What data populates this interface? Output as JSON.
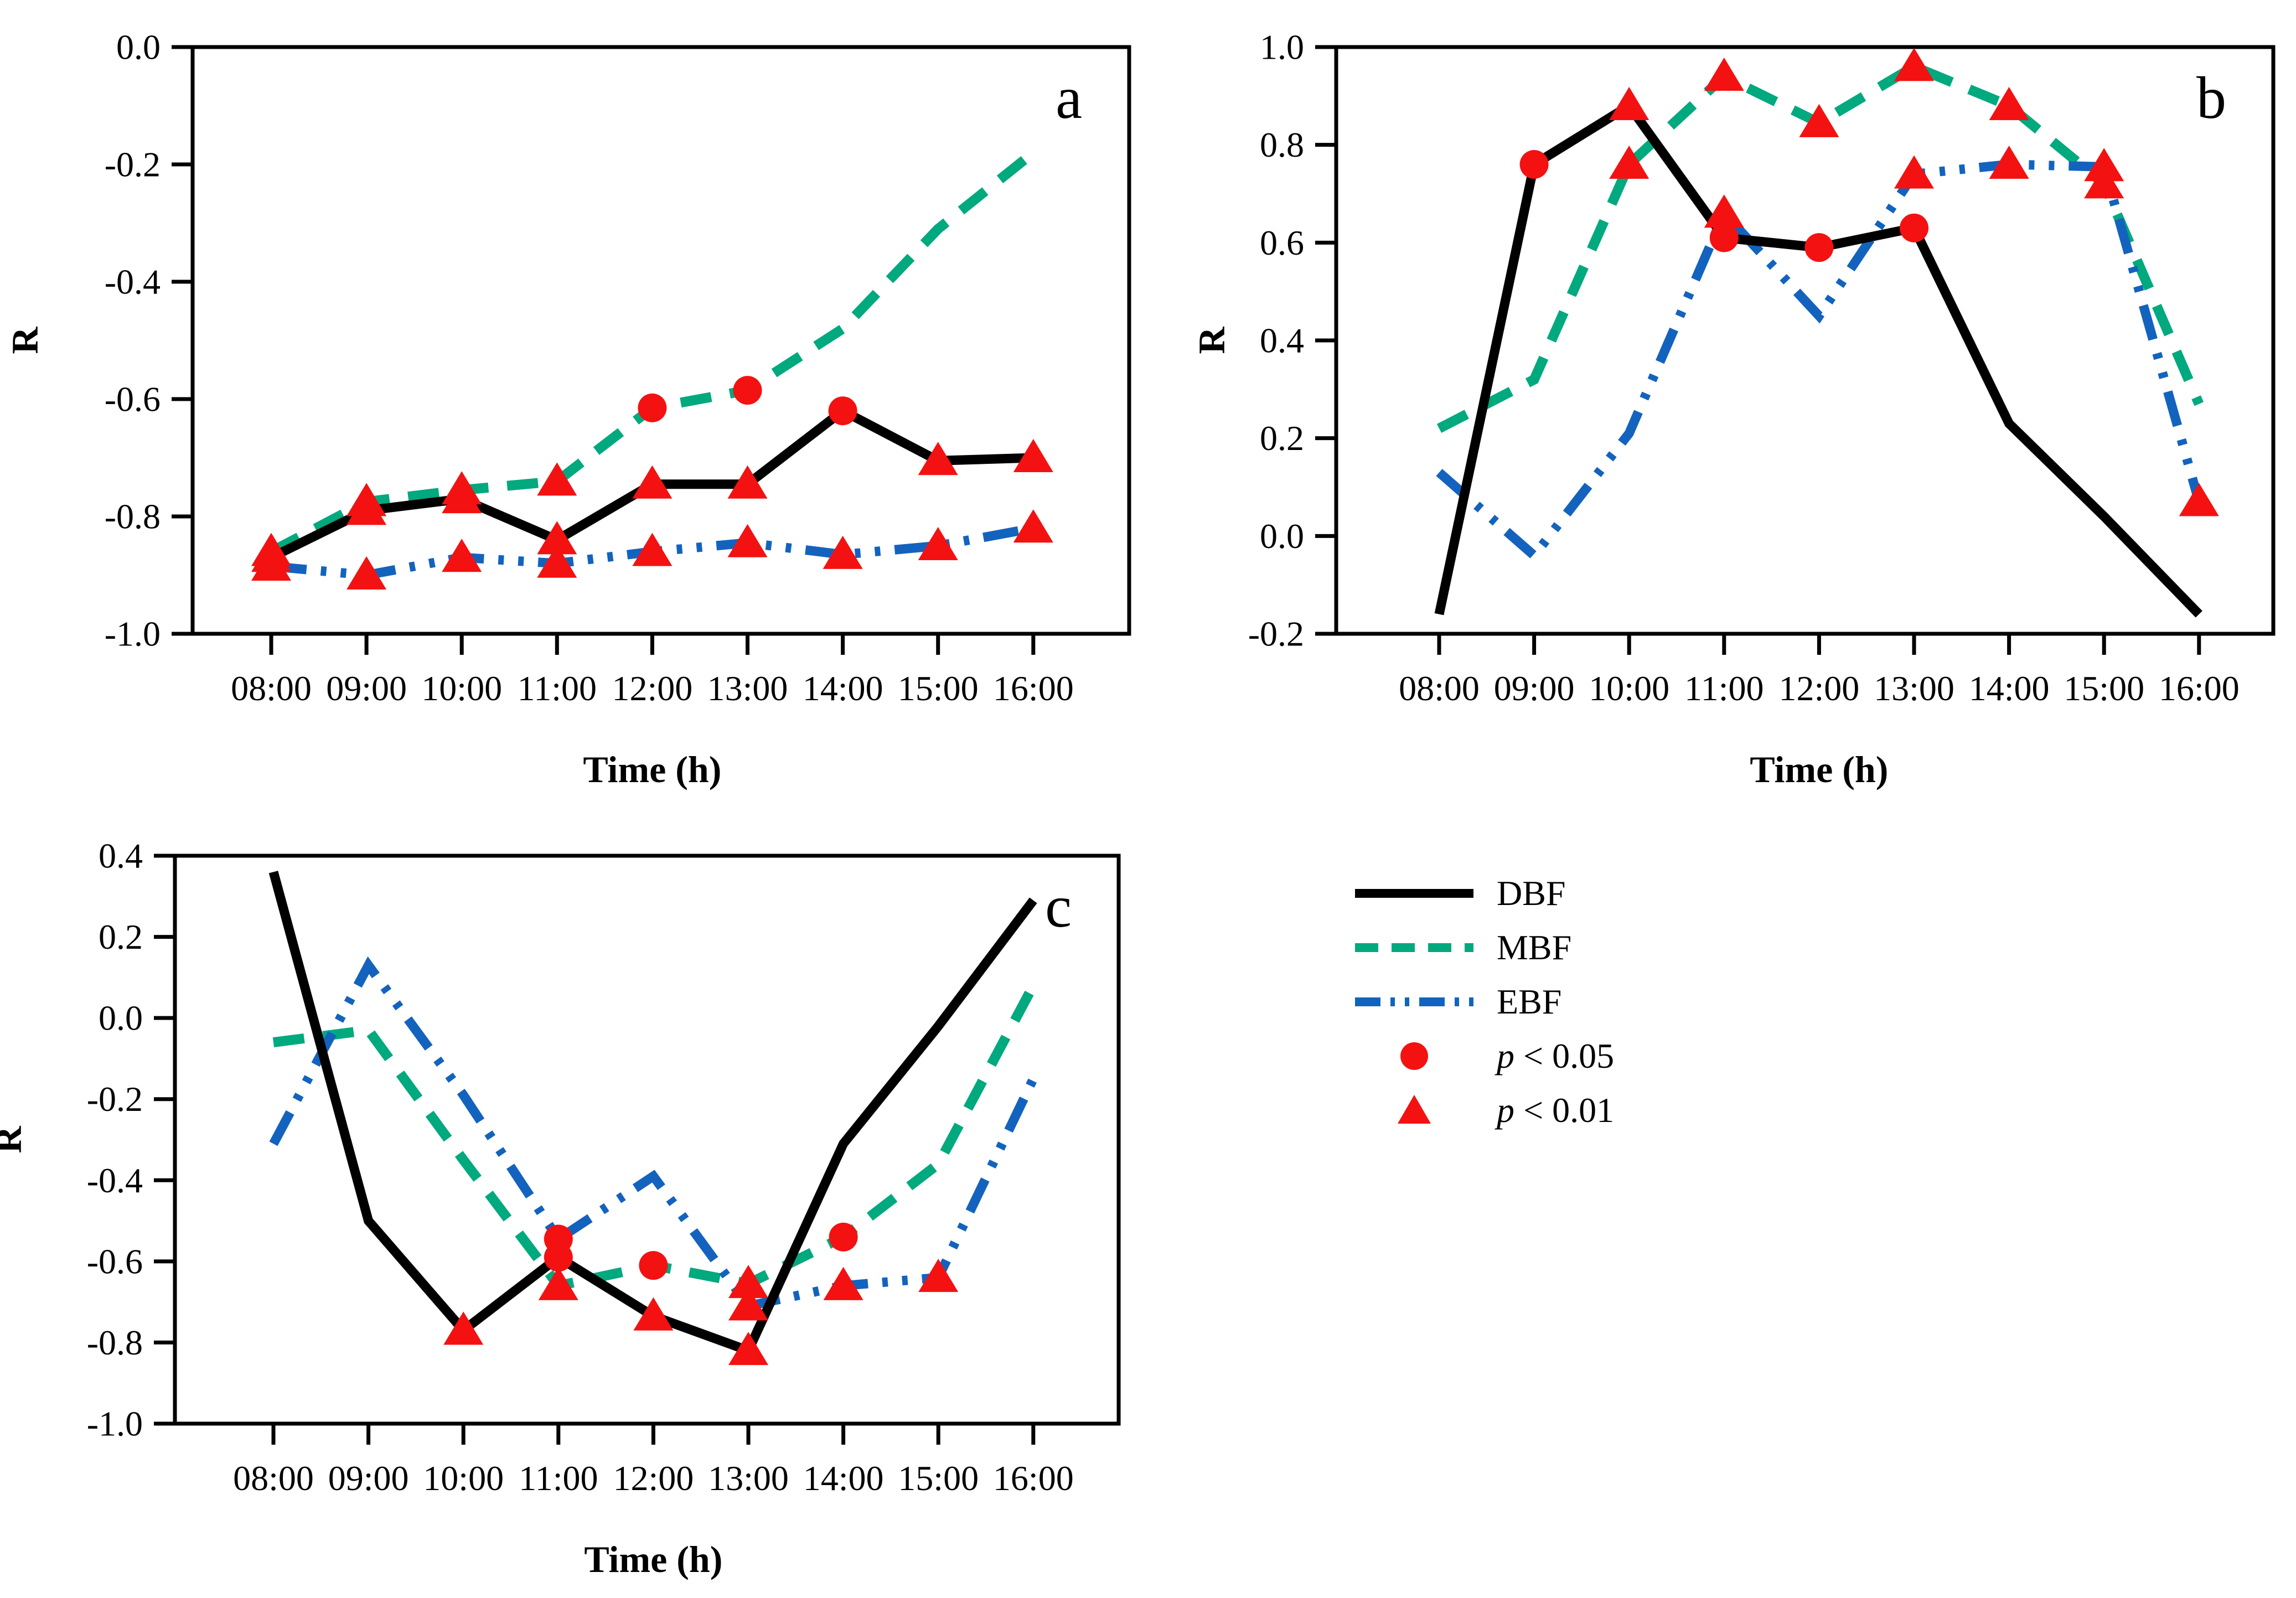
{
  "figure": {
    "background": "#ffffff",
    "x_axis_label": "Time (h)",
    "y_axis_label": "R"
  },
  "colors": {
    "dbf_line": "#000000",
    "mbf_line": "#00a97e",
    "ebf_line": "#1363be",
    "marker_red": "#f41111",
    "axis": "#000000"
  },
  "chart_data": [
    {
      "type": "line",
      "panel_label": "a",
      "xlabel": "Time (h)",
      "ylabel": "R",
      "categories": [
        "08:00",
        "09:00",
        "10:00",
        "11:00",
        "12:00",
        "13:00",
        "14:00",
        "15:00",
        "16:00"
      ],
      "ylim": [
        -1.0,
        0.0
      ],
      "yticks": [
        0.0,
        -0.2,
        -0.4,
        -0.6,
        -0.8,
        -1.0
      ],
      "ytick_labels": [
        "0.0",
        "-0.2",
        "-0.4",
        "-0.6",
        "-0.8",
        "-1.0"
      ],
      "grid": false,
      "series": [
        {
          "name": "MBF",
          "style": "dashed",
          "color": "#00a97e",
          "values": [
            -0.86,
            -0.775,
            -0.755,
            -0.74,
            -0.615,
            -0.585,
            -0.48,
            -0.31,
            -0.18
          ],
          "sig_markers": [
            "t",
            "t",
            "t",
            "t",
            "c",
            "c",
            "",
            "",
            ""
          ]
        },
        {
          "name": "EBF",
          "style": "dashdotdot",
          "color": "#1363be",
          "values": [
            -0.885,
            -0.9,
            -0.87,
            -0.88,
            -0.86,
            -0.845,
            -0.865,
            -0.85,
            -0.82
          ],
          "sig_markers": [
            "t",
            "t",
            "t",
            "t",
            "t",
            "t",
            "t",
            "t",
            "t"
          ]
        },
        {
          "name": "DBF",
          "style": "solid",
          "color": "#000000",
          "values": [
            -0.87,
            -0.79,
            -0.77,
            -0.84,
            -0.745,
            -0.745,
            -0.62,
            -0.705,
            -0.7
          ],
          "sig_markers": [
            "t",
            "t",
            "t",
            "t",
            "t",
            "t",
            "c",
            "t",
            "t"
          ]
        }
      ]
    },
    {
      "type": "line",
      "panel_label": "b",
      "xlabel": "Time (h)",
      "ylabel": "R",
      "categories": [
        "08:00",
        "09:00",
        "10:00",
        "11:00",
        "12:00",
        "13:00",
        "14:00",
        "15:00",
        "16:00"
      ],
      "ylim": [
        -0.2,
        1.0
      ],
      "yticks": [
        1.0,
        0.8,
        0.6,
        0.4,
        0.2,
        0.0,
        -0.2
      ],
      "ytick_labels": [
        "1.0",
        "0.8",
        "0.6",
        "0.4",
        "0.2",
        "0.0",
        "-0.2"
      ],
      "grid": false,
      "series": [
        {
          "name": "MBF",
          "style": "dashed",
          "color": "#00a97e",
          "values": [
            0.22,
            0.32,
            0.76,
            0.94,
            0.845,
            0.96,
            0.88,
            0.72,
            0.27
          ],
          "sig_markers": [
            "",
            "",
            "t",
            "t",
            "t",
            "t",
            "t",
            "t",
            ""
          ]
        },
        {
          "name": "EBF",
          "style": "dashdotdot",
          "color": "#1363be",
          "values": [
            0.13,
            -0.04,
            0.21,
            0.66,
            0.45,
            0.74,
            0.76,
            0.755,
            0.07
          ],
          "sig_markers": [
            "",
            "",
            "",
            "t",
            "",
            "t",
            "t",
            "t",
            "t"
          ]
        },
        {
          "name": "DBF",
          "style": "solid",
          "color": "#000000",
          "values": [
            -0.16,
            0.76,
            0.88,
            0.61,
            0.59,
            0.63,
            0.23,
            0.04,
            -0.16
          ],
          "sig_markers": [
            "",
            "c",
            "t",
            "c",
            "c",
            "c",
            "",
            "",
            ""
          ]
        }
      ]
    },
    {
      "type": "line",
      "panel_label": "c",
      "xlabel": "Time (h)",
      "ylabel": "R",
      "categories": [
        "08:00",
        "09:00",
        "10:00",
        "11:00",
        "12:00",
        "13:00",
        "14:00",
        "15:00",
        "16:00"
      ],
      "ylim": [
        -1.0,
        0.4
      ],
      "yticks": [
        0.4,
        0.2,
        0.0,
        -0.2,
        -0.4,
        -0.6,
        -0.8,
        -1.0
      ],
      "ytick_labels": [
        "0.4",
        "0.2",
        "0.0",
        "-0.2",
        "-0.4",
        "-0.6",
        "-0.8",
        "-1.0"
      ],
      "grid": false,
      "series": [
        {
          "name": "MBF",
          "style": "dashed",
          "color": "#00a97e",
          "values": [
            -0.06,
            -0.03,
            -0.35,
            -0.66,
            -0.61,
            -0.655,
            -0.54,
            -0.36,
            0.08
          ],
          "sig_markers": [
            "",
            "",
            "",
            "t",
            "c",
            "t",
            "c",
            "",
            ""
          ]
        },
        {
          "name": "EBF",
          "style": "dashdotdot",
          "color": "#1363be",
          "values": [
            -0.31,
            0.13,
            -0.19,
            -0.545,
            -0.39,
            -0.71,
            -0.66,
            -0.64,
            -0.15
          ],
          "sig_markers": [
            "",
            "",
            "",
            "c",
            "",
            "t",
            "t",
            "t",
            ""
          ]
        },
        {
          "name": "DBF",
          "style": "solid",
          "color": "#000000",
          "values": [
            0.36,
            -0.5,
            -0.77,
            -0.59,
            -0.735,
            -0.82,
            -0.31,
            -0.02,
            0.29
          ],
          "sig_markers": [
            "",
            "",
            "t",
            "c",
            "t",
            "t",
            "",
            "",
            ""
          ]
        }
      ]
    }
  ],
  "legend": {
    "position": "bottom-right-quadrant",
    "items": [
      {
        "label": "DBF",
        "style": "solid",
        "color": "#000000"
      },
      {
        "label": "MBF",
        "style": "dashed",
        "color": "#00a97e"
      },
      {
        "label": "EBF",
        "style": "dashdotdot",
        "color": "#1363be"
      }
    ],
    "significance": [
      {
        "p": "p",
        "rest": " < 0.05",
        "marker": "circle",
        "color": "#f41111"
      },
      {
        "p": "p",
        "rest": " < 0.01",
        "marker": "triangle",
        "color": "#f41111"
      }
    ]
  }
}
